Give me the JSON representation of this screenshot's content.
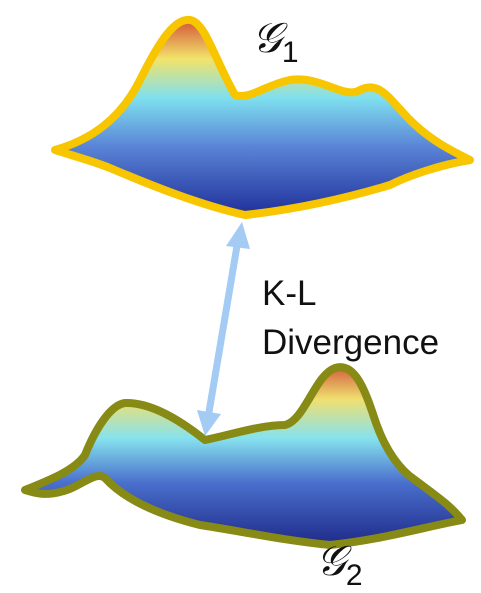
{
  "nodes": [
    {
      "label": "𝒢",
      "subscript": "1"
    },
    {
      "label": "𝒢",
      "subscript": "2"
    }
  ],
  "edge": {
    "label": [
      "K-L",
      "Divergence"
    ]
  }
}
